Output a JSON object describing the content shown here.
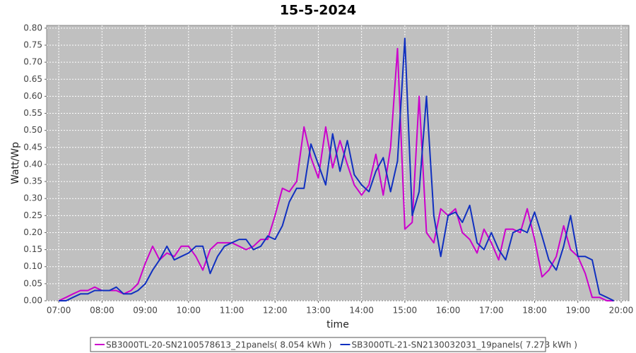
{
  "chart_data": {
    "type": "line",
    "title": "15-5-2024",
    "x_label": "time",
    "y_label": "Watt/Wp",
    "grid": true,
    "x": [
      7,
      7.17,
      7.33,
      7.5,
      7.67,
      7.83,
      8,
      8.17,
      8.33,
      8.5,
      8.67,
      8.83,
      9,
      9.17,
      9.33,
      9.5,
      9.67,
      9.83,
      10,
      10.17,
      10.33,
      10.5,
      10.67,
      10.83,
      11,
      11.17,
      11.33,
      11.5,
      11.67,
      11.83,
      12,
      12.17,
      12.33,
      12.5,
      12.67,
      12.83,
      13,
      13.17,
      13.33,
      13.5,
      13.67,
      13.83,
      14,
      14.17,
      14.33,
      14.5,
      14.67,
      14.83,
      15,
      15.17,
      15.33,
      15.5,
      15.67,
      15.83,
      16,
      16.17,
      16.33,
      16.5,
      16.67,
      16.83,
      17,
      17.17,
      17.33,
      17.5,
      17.67,
      17.83,
      18,
      18.17,
      18.33,
      18.5,
      18.67,
      18.83,
      19,
      19.17,
      19.33,
      19.5,
      19.67,
      19.83
    ],
    "series": [
      {
        "name": "SB3000TL-20-SN2100578613_21panels( 8.054 kWh )",
        "color": "#cc00cc",
        "values": [
          0,
          0.01,
          0.02,
          0.03,
          0.03,
          0.04,
          0.03,
          0.03,
          0.03,
          0.02,
          0.03,
          0.05,
          0.11,
          0.16,
          0.12,
          0.14,
          0.13,
          0.16,
          0.16,
          0.13,
          0.09,
          0.15,
          0.17,
          0.17,
          0.17,
          0.16,
          0.15,
          0.16,
          0.18,
          0.18,
          0.25,
          0.33,
          0.32,
          0.35,
          0.51,
          0.42,
          0.36,
          0.51,
          0.39,
          0.47,
          0.4,
          0.34,
          0.31,
          0.34,
          0.43,
          0.31,
          0.45,
          0.74,
          0.21,
          0.23,
          0.6,
          0.2,
          0.17,
          0.27,
          0.25,
          0.27,
          0.2,
          0.18,
          0.14,
          0.21,
          0.17,
          0.12,
          0.21,
          0.21,
          0.2,
          0.27,
          0.18,
          0.07,
          0.09,
          0.13,
          0.22,
          0.15,
          0.13,
          0.08,
          0.01,
          0.01,
          0,
          0
        ]
      },
      {
        "name": "SB3000TL-21-SN2130032031_19panels( 7.273 kWh )",
        "color": "#1030c0",
        "values": [
          0,
          0,
          0.01,
          0.02,
          0.02,
          0.03,
          0.03,
          0.03,
          0.04,
          0.02,
          0.02,
          0.03,
          0.05,
          0.09,
          0.12,
          0.16,
          0.12,
          0.13,
          0.14,
          0.16,
          0.16,
          0.08,
          0.13,
          0.16,
          0.17,
          0.18,
          0.18,
          0.15,
          0.16,
          0.19,
          0.18,
          0.22,
          0.29,
          0.33,
          0.33,
          0.46,
          0.4,
          0.34,
          0.49,
          0.38,
          0.47,
          0.37,
          0.34,
          0.32,
          0.38,
          0.42,
          0.32,
          0.41,
          0.77,
          0.25,
          0.32,
          0.6,
          0.25,
          0.13,
          0.25,
          0.26,
          0.23,
          0.28,
          0.17,
          0.15,
          0.2,
          0.15,
          0.12,
          0.2,
          0.21,
          0.2,
          0.26,
          0.19,
          0.12,
          0.09,
          0.16,
          0.25,
          0.13,
          0.13,
          0.12,
          0.02,
          0.01,
          0
        ]
      }
    ],
    "xlim": [
      6.72,
      20.18
    ],
    "xticks": [
      {
        "value": 7,
        "label": "07:00"
      },
      {
        "value": 8,
        "label": "08:00"
      },
      {
        "value": 9,
        "label": "09:00"
      },
      {
        "value": 10,
        "label": "10:00"
      },
      {
        "value": 11,
        "label": "11:00"
      },
      {
        "value": 12,
        "label": "12:00"
      },
      {
        "value": 13,
        "label": "13:00"
      },
      {
        "value": 14,
        "label": "14:00"
      },
      {
        "value": 15,
        "label": "15:00"
      },
      {
        "value": 16,
        "label": "16:00"
      },
      {
        "value": 17,
        "label": "17:00"
      },
      {
        "value": 18,
        "label": "18:00"
      },
      {
        "value": 19,
        "label": "19:00"
      },
      {
        "value": 20,
        "label": "20:00"
      }
    ],
    "ylim": [
      0,
      0.808
    ],
    "yticks": [
      {
        "value": 0,
        "label": "0.00"
      },
      {
        "value": 0.05,
        "label": "0.05"
      },
      {
        "value": 0.1,
        "label": "0.10"
      },
      {
        "value": 0.15,
        "label": "0.15"
      },
      {
        "value": 0.2,
        "label": "0.20"
      },
      {
        "value": 0.25,
        "label": "0.25"
      },
      {
        "value": 0.3,
        "label": "0.30"
      },
      {
        "value": 0.35,
        "label": "0.35"
      },
      {
        "value": 0.4,
        "label": "0.40"
      },
      {
        "value": 0.45,
        "label": "0.45"
      },
      {
        "value": 0.5,
        "label": "0.50"
      },
      {
        "value": 0.55,
        "label": "0.55"
      },
      {
        "value": 0.6,
        "label": "0.60"
      },
      {
        "value": 0.65,
        "label": "0.65"
      },
      {
        "value": 0.7,
        "label": "0.70"
      },
      {
        "value": 0.75,
        "label": "0.75"
      },
      {
        "value": 0.8,
        "label": "0.80"
      }
    ]
  }
}
